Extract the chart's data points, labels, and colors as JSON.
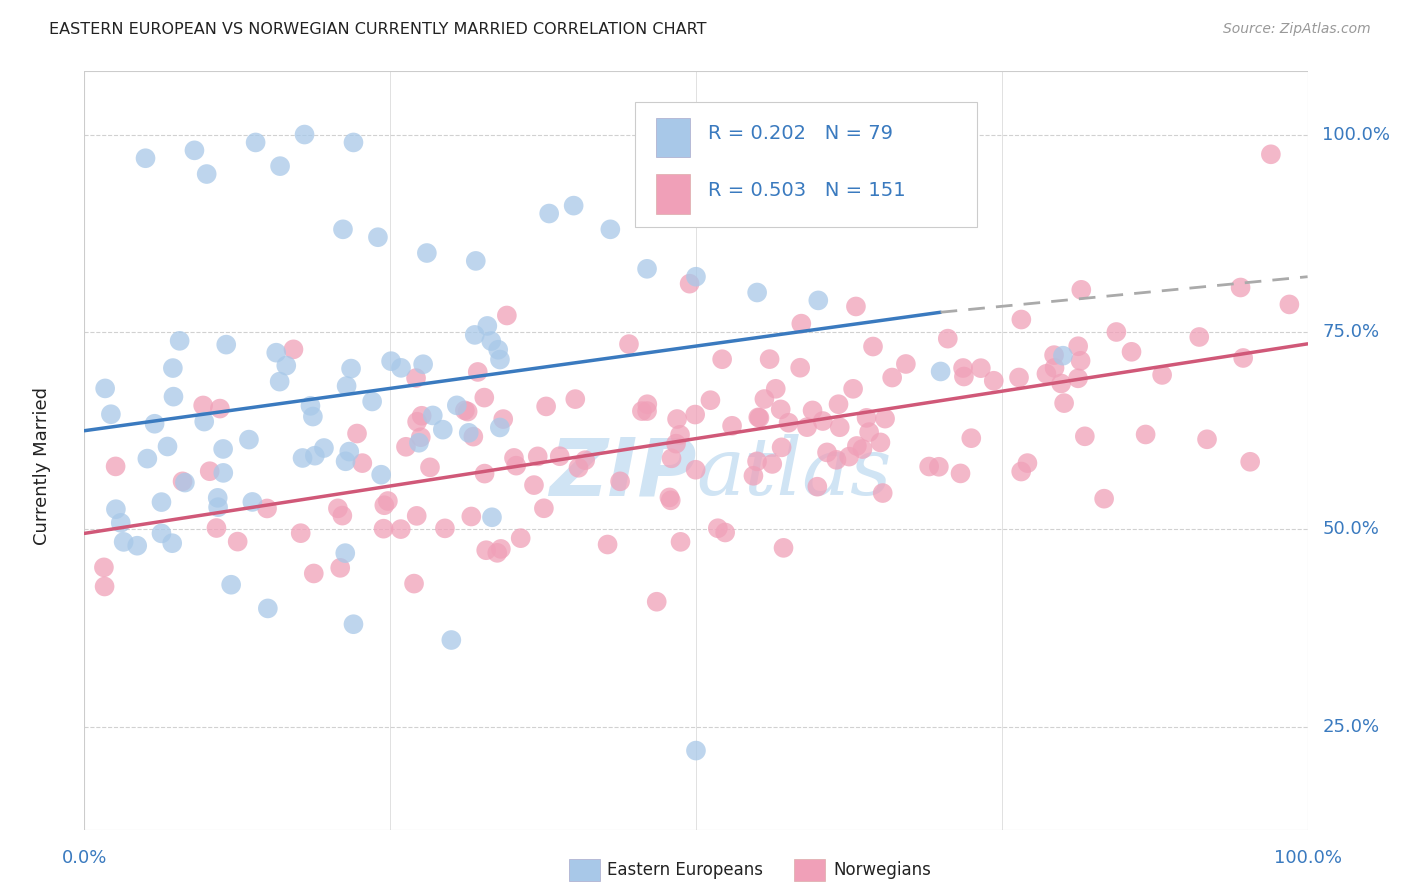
{
  "title": "EASTERN EUROPEAN VS NORWEGIAN CURRENTLY MARRIED CORRELATION CHART",
  "source": "Source: ZipAtlas.com",
  "ylabel": "Currently Married",
  "ytick_labels": [
    "25.0%",
    "50.0%",
    "75.0%",
    "100.0%"
  ],
  "ytick_vals": [
    0.25,
    0.5,
    0.75,
    1.0
  ],
  "xtick_labels": [
    "0.0%",
    "100.0%"
  ],
  "xtick_vals": [
    0.0,
    1.0
  ],
  "legend_blue_label": "Eastern Europeans",
  "legend_pink_label": "Norwegians",
  "legend_r_blue": "R = 0.202",
  "legend_n_blue": "N = 79",
  "legend_r_pink": "R = 0.503",
  "legend_n_pink": "N = 151",
  "blue_color": "#a8c8e8",
  "pink_color": "#f0a0b8",
  "trend_blue_color": "#3a7abf",
  "trend_pink_color": "#d05878",
  "trend_dash_color": "#aaaaaa",
  "watermark_color": "#d0e4f4",
  "background_color": "#ffffff",
  "grid_color": "#cccccc",
  "axis_color": "#888888",
  "label_color": "#3a7abf",
  "text_color": "#222222",
  "xlim": [
    0.0,
    1.0
  ],
  "ylim": [
    0.12,
    1.08
  ],
  "blue_trend_y0": 0.625,
  "blue_trend_y1": 0.775,
  "blue_trend_x0": 0.0,
  "blue_trend_x1": 0.7,
  "dash_trend_x0": 0.7,
  "dash_trend_x1": 1.0,
  "dash_trend_y0": 0.775,
  "dash_trend_y1": 0.82,
  "pink_trend_y0": 0.495,
  "pink_trend_y1": 0.735,
  "pink_trend_x0": 0.0,
  "pink_trend_x1": 1.0
}
